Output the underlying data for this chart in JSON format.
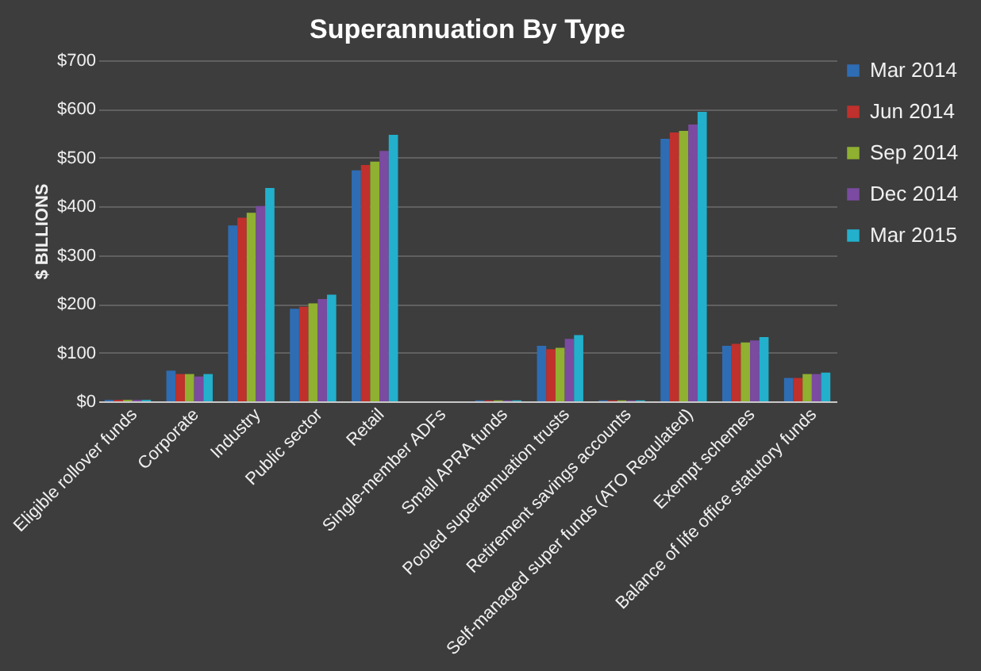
{
  "chart_data": {
    "type": "bar",
    "title": "Superannuation  By Type",
    "ylabel": "$ BILLIONS",
    "categories": [
      "Eligible rollover funds",
      "Corporate",
      "Industry",
      "Public sector",
      "Retail",
      "Single-member ADFs",
      "Small APRA funds",
      "Pooled superannuation trusts",
      "Retirement savings accounts",
      "Self-managed super funds  (ATO Regulated)",
      "Exempt schemes",
      "Balance of life office statutory funds"
    ],
    "series": [
      {
        "name": "Mar 2014",
        "color": "#2e6db4",
        "values": [
          3,
          63,
          361,
          190,
          474,
          null,
          2,
          114,
          2,
          539,
          114,
          48
        ]
      },
      {
        "name": "Jun 2014",
        "color": "#c0302c",
        "values": [
          3,
          56,
          377,
          194,
          485,
          null,
          2,
          107,
          2,
          552,
          118,
          48
        ]
      },
      {
        "name": "Sep 2014",
        "color": "#8fb030",
        "values": [
          3,
          56,
          387,
          201,
          492,
          null,
          2,
          110,
          2,
          555,
          121,
          56
        ]
      },
      {
        "name": "Dec 2014",
        "color": "#7a4ba0",
        "values": [
          3,
          51,
          401,
          210,
          514,
          null,
          2,
          128,
          2,
          568,
          125,
          56
        ]
      },
      {
        "name": "Mar 2015",
        "color": "#22b0cc",
        "values": [
          3,
          56,
          438,
          219,
          547,
          null,
          2,
          136,
          2,
          594,
          132,
          59
        ]
      }
    ],
    "ylim": [
      0,
      700
    ],
    "yticks": [
      {
        "value": 0,
        "label": "$0"
      },
      {
        "value": 100,
        "label": "$100"
      },
      {
        "value": 200,
        "label": "$200"
      },
      {
        "value": 300,
        "label": "$300"
      },
      {
        "value": 400,
        "label": "$400"
      },
      {
        "value": 500,
        "label": "$500"
      },
      {
        "value": 600,
        "label": "$600"
      },
      {
        "value": 700,
        "label": "$700"
      }
    ],
    "grid": "y",
    "legend": "right"
  }
}
